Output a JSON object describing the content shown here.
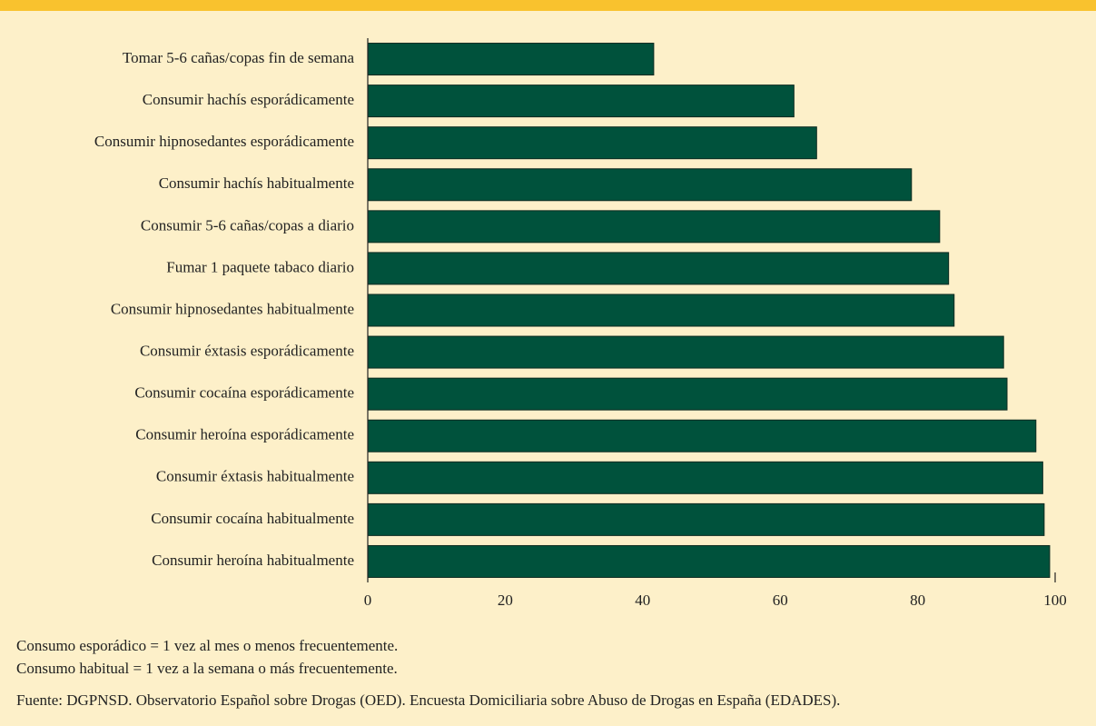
{
  "chart_data": {
    "type": "bar",
    "orientation": "horizontal",
    "categories": [
      "Tomar 5-6 cañas/copas fin de semana",
      "Consumir hachís esporádicamente",
      "Consumir hipnosedantes esporádicamente",
      "Consumir hachís habitualmente",
      "Consumir 5-6 cañas/copas a diario",
      "Fumar 1 paquete tabaco diario",
      "Consumir hipnosedantes habitualmente",
      "Consumir éxtasis esporádicamente",
      "Consumir cocaína esporádicamente",
      "Consumir heroína esporádicamente",
      "Consumir éxtasis habitualmente",
      "Consumir cocaína habitualmente",
      "Consumir heroína habitualmente"
    ],
    "values": [
      41.6,
      62.0,
      65.3,
      79.1,
      83.2,
      84.5,
      85.3,
      92.5,
      93.0,
      97.2,
      98.2,
      98.4,
      99.2
    ],
    "color": "#00523c",
    "xlim": [
      0,
      100
    ],
    "xticks": [
      0,
      20,
      40,
      60,
      80,
      100
    ],
    "notes": [
      "Consumo esporádico = 1 vez al mes o menos frecuentemente.",
      "Consumo habitual = 1 vez a la semana o más frecuentemente."
    ],
    "source": "Fuente: DGPNSD. Observatorio Español sobre Drogas (OED). Encuesta Domiciliaria sobre Abuso de Drogas en España (EDADES)."
  }
}
